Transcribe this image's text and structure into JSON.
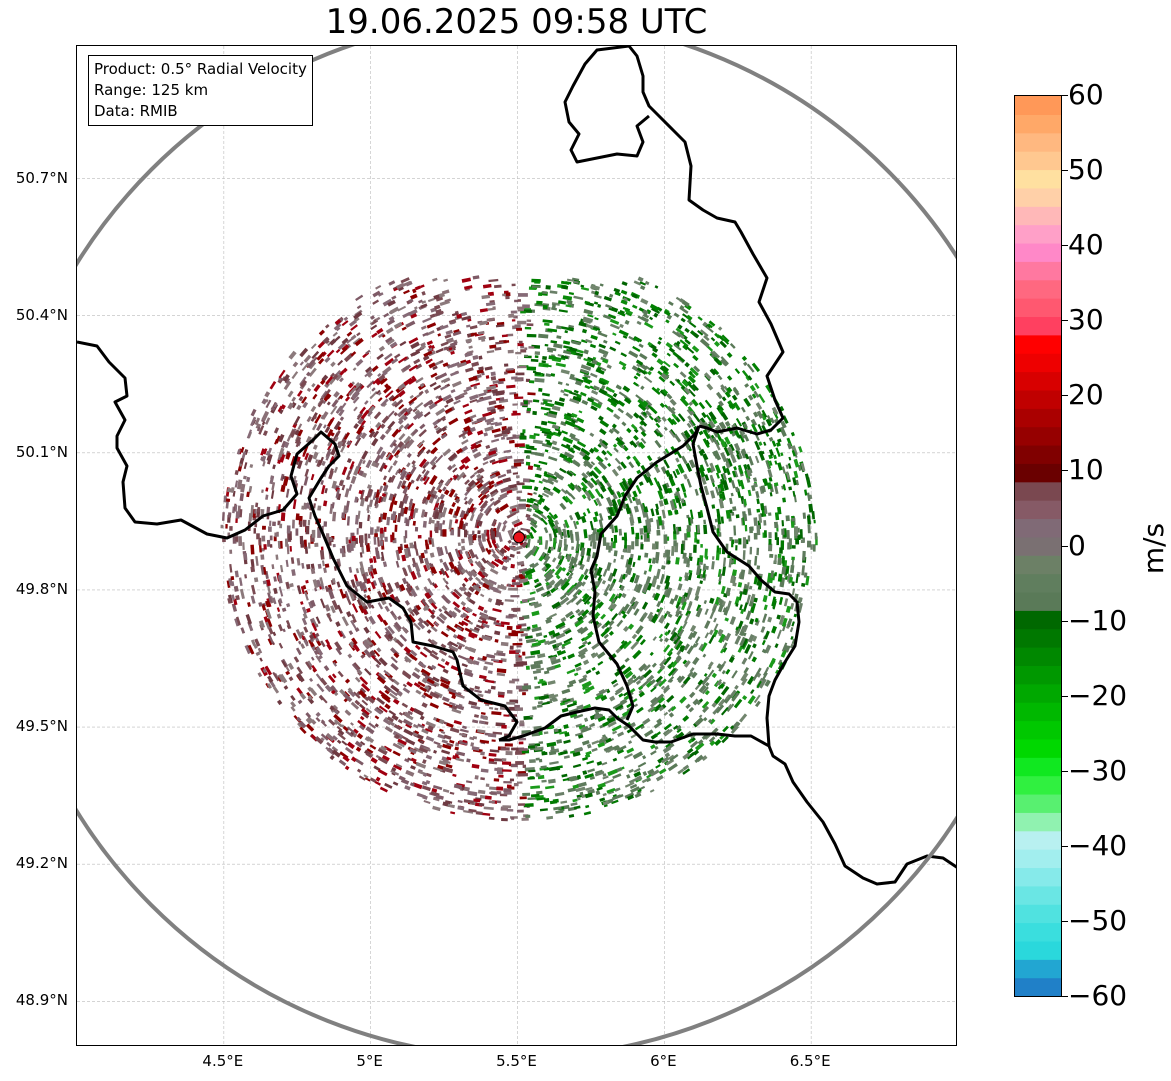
{
  "title": "19.06.2025 09:58 UTC",
  "info_box": {
    "product": "Product: 0.5° Radial Velocity",
    "range": "Range: 125 km",
    "data": "Data: RMIB"
  },
  "axes": {
    "lat_labels": [
      "50.7°N",
      "50.4°N",
      "50.1°N",
      "49.8°N",
      "49.5°N",
      "49.2°N",
      "48.9°N"
    ],
    "lat_values": [
      50.7,
      50.4,
      50.1,
      49.8,
      49.5,
      49.2,
      48.9
    ],
    "lon_labels": [
      "4.5°E",
      "5°E",
      "5.5°E",
      "6°E",
      "6.5°E"
    ],
    "lon_values": [
      4.5,
      5.0,
      5.5,
      6.0,
      6.5
    ],
    "lon_range": [
      4.0,
      7.0
    ],
    "lat_range": [
      48.8,
      50.99
    ]
  },
  "radar_site": {
    "lon": 5.505,
    "lat": 49.915,
    "color": "#e8101a"
  },
  "range_ring_color": "#808080",
  "colorbar": {
    "label": "m/s",
    "min": -60,
    "max": 60,
    "ticks": [
      "60",
      "50",
      "40",
      "30",
      "20",
      "10",
      "0",
      "−10",
      "−20",
      "−30",
      "−40",
      "−50",
      "−60"
    ],
    "tick_values": [
      60,
      50,
      40,
      30,
      20,
      10,
      0,
      -10,
      -20,
      -30,
      -40,
      -50,
      -60
    ],
    "colors": [
      "#2080c8",
      "#22a6d2",
      "#2ad8dc",
      "#3adede",
      "#50e2e0",
      "#6ae6e4",
      "#86eaea",
      "#a2eeee",
      "#b8f0f0",
      "#90f2b0",
      "#58f070",
      "#30f040",
      "#10e820",
      "#00d800",
      "#00c800",
      "#00b800",
      "#00a800",
      "#009800",
      "#008800",
      "#007800",
      "#006800",
      "#5a7a58",
      "#607e5e",
      "#6c8066",
      "#7a7072",
      "#806a76",
      "#865a66",
      "#7a4850",
      "#6a0000",
      "#800000",
      "#960000",
      "#aa0000",
      "#c00000",
      "#d80000",
      "#ee0000",
      "#ff0000",
      "#ff4060",
      "#ff5870",
      "#ff6880",
      "#ff78a0",
      "#ff88c8",
      "#ffa0c8",
      "#ffb8b8",
      "#ffd0a8",
      "#ffe0a0",
      "#ffc890",
      "#ffb880",
      "#ffa868",
      "#ff9858"
    ]
  }
}
